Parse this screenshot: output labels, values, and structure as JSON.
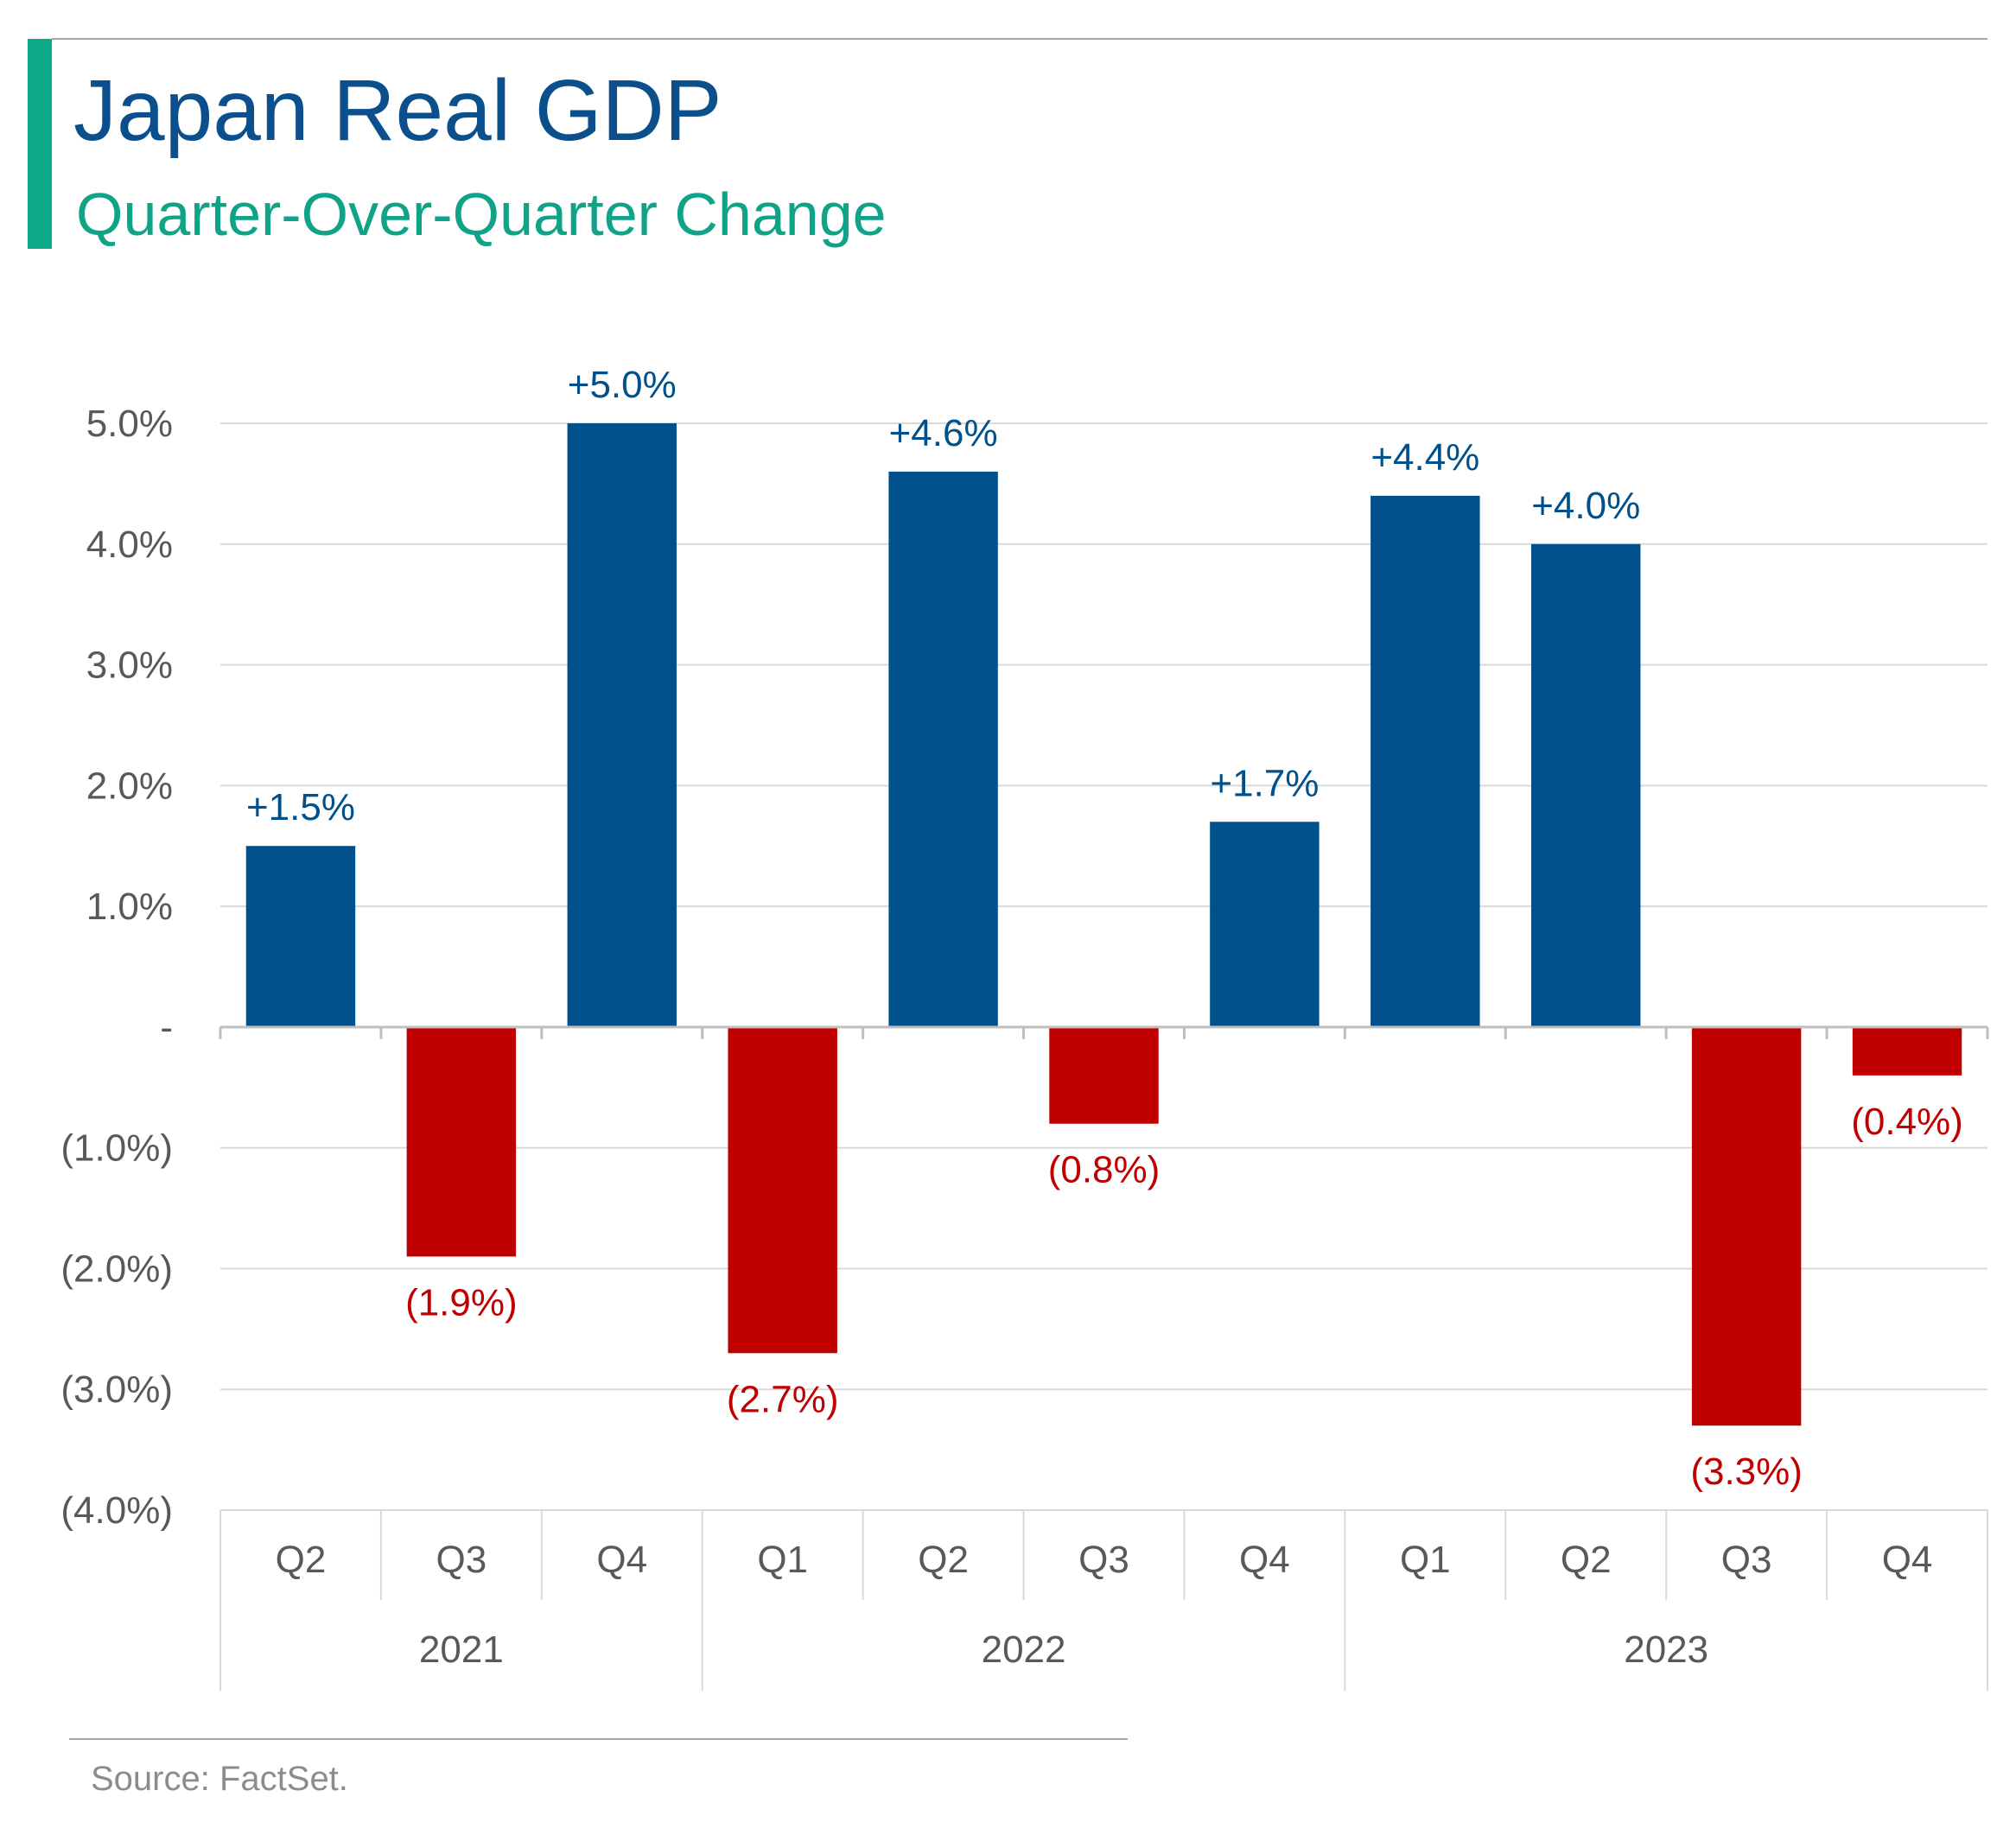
{
  "header": {
    "title": "Japan Real GDP",
    "subtitle": "Quarter-Over-Quarter Change"
  },
  "footer": {
    "source": "Source: FactSet."
  },
  "colors": {
    "positive": "#00508C",
    "negative": "#C00000",
    "title": "#0B4F8C",
    "subtitle": "#10A387",
    "accent_bar": "#0DAA8A",
    "axis_text": "#595959",
    "grid": "#D9D9D9"
  },
  "chart_data": {
    "type": "bar",
    "categories": [
      "Q2",
      "Q3",
      "Q4",
      "Q1",
      "Q2",
      "Q3",
      "Q4",
      "Q1",
      "Q2",
      "Q3",
      "Q4"
    ],
    "groups": [
      {
        "label": "2021",
        "count": 3
      },
      {
        "label": "2022",
        "count": 4
      },
      {
        "label": "2023",
        "count": 4
      }
    ],
    "values": [
      1.5,
      -1.9,
      5.0,
      -2.7,
      4.6,
      -0.8,
      1.7,
      4.4,
      4.0,
      -3.3,
      -0.4
    ],
    "data_labels": [
      "+1.5%",
      "(1.9%)",
      "+5.0%",
      "(2.7%)",
      "+4.6%",
      "(0.8%)",
      "+1.7%",
      "+4.4%",
      "+4.0%",
      "(3.3%)",
      "(0.4%)"
    ],
    "yticks": [
      {
        "value": 5,
        "label": "5.0%"
      },
      {
        "value": 4,
        "label": "4.0%"
      },
      {
        "value": 3,
        "label": "3.0%"
      },
      {
        "value": 2,
        "label": "2.0%"
      },
      {
        "value": 1,
        "label": "1.0%"
      },
      {
        "value": 0,
        "label": "-"
      },
      {
        "value": -1,
        "label": "(1.0%)"
      },
      {
        "value": -2,
        "label": "(2.0%)"
      },
      {
        "value": -3,
        "label": "(3.0%)"
      },
      {
        "value": -4,
        "label": "(4.0%)"
      }
    ],
    "ylim": [
      -4,
      5
    ],
    "grid": true,
    "legend": "none"
  }
}
